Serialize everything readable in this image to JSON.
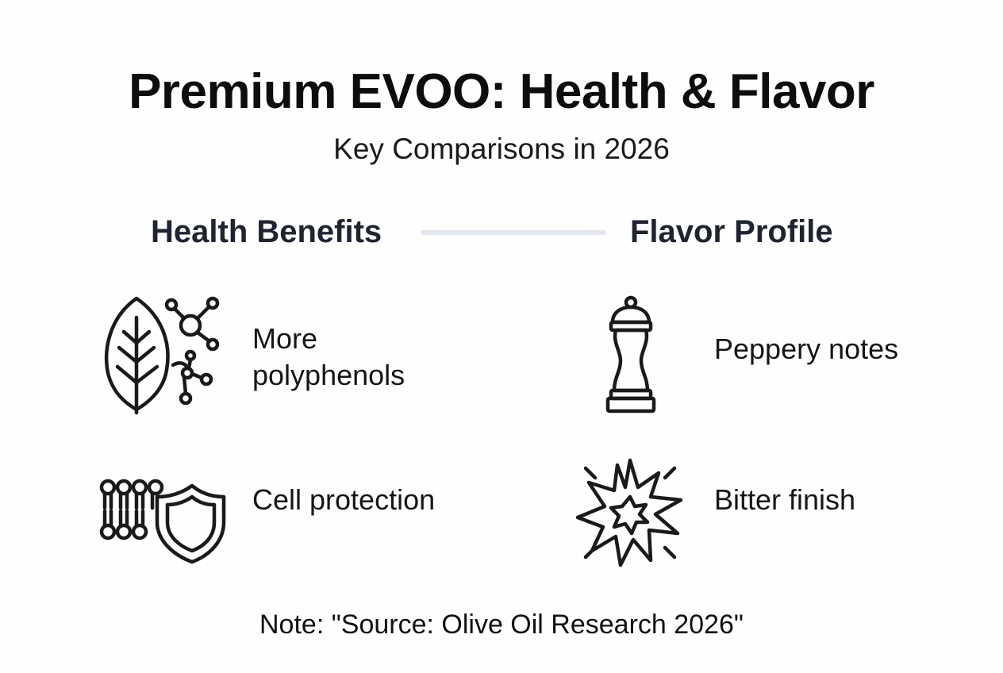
{
  "title": "Premium EVOO: Health & Flavor",
  "subtitle": "Key Comparisons in 2026",
  "columns": {
    "health": {
      "heading": "Health Benefits",
      "items": [
        {
          "icon": "leaf-molecule-icon",
          "label_lines": [
            "More",
            "polyphenols"
          ]
        },
        {
          "icon": "cell-membrane-shield-icon",
          "label": "Cell protection"
        }
      ]
    },
    "flavor": {
      "heading": "Flavor Profile",
      "items": [
        {
          "icon": "pepper-mill-icon",
          "label": "Peppery notes"
        },
        {
          "icon": "burst-icon",
          "label": "Bitter finish"
        }
      ]
    }
  },
  "note": "Note: \"Source: Olive Oil Research 2026\""
}
